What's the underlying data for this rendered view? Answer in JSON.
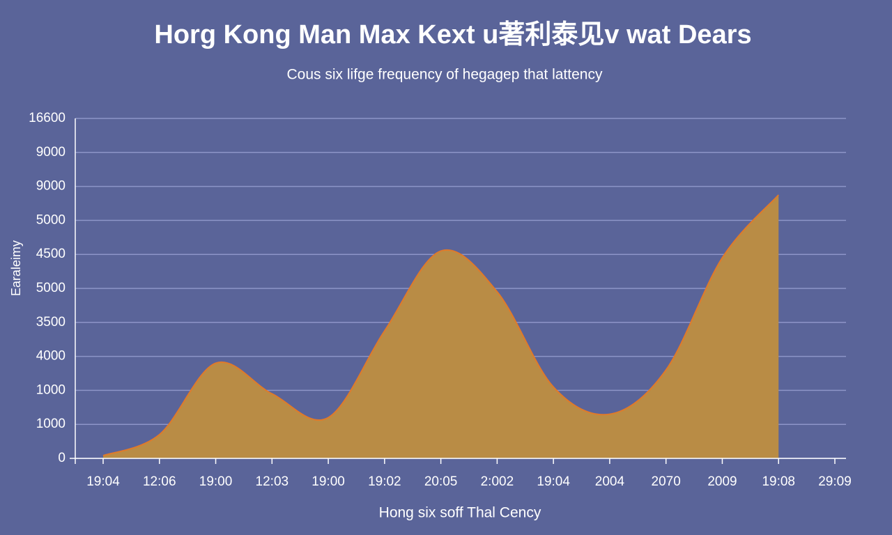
{
  "chart_data": {
    "type": "area",
    "title": "Horg Kong Man Max Kext u著利泰见v wat Dears",
    "subtitle": "Cous six lifge frequency of hegagep that lattency",
    "x_label": "Hong six soff Thal Cency",
    "y_label": "Earaleimy",
    "categories": [
      "19:04",
      "12:06",
      "19:00",
      "12:03",
      "19:00",
      "19:02",
      "20:05",
      "2:002",
      "19:04",
      "2004",
      "2070",
      "2009",
      "19:08",
      "29:09"
    ],
    "values": [
      0.08,
      0.7,
      2.8,
      1.9,
      1.2,
      3.75,
      6.1,
      4.9,
      2.1,
      1.3,
      2.6,
      5.9,
      7.75,
      null
    ],
    "ylim": [
      0,
      10
    ],
    "yticks": [
      0,
      1,
      2,
      3,
      4,
      5,
      6,
      7,
      8,
      9,
      10
    ],
    "ytick_labels": [
      "0",
      "1000",
      "1000",
      "4000",
      "3500",
      "5000",
      "4500",
      "5000",
      "9000",
      "9000",
      "16600"
    ],
    "grid": true,
    "color": "#b98c45",
    "line_color": "#e07a2a"
  }
}
